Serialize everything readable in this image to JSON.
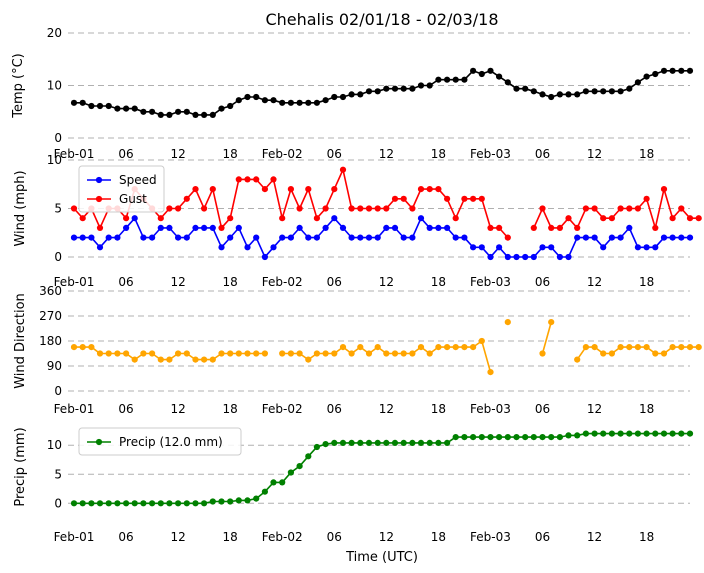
{
  "chart_data": {
    "type": "line",
    "title": "Chehalis 02/01/18 - 02/03/18",
    "xlabel": "Time (UTC)",
    "x_start": "2018-02-01T00:00",
    "x_step_hours": 1,
    "x_ticks": [
      "Feb-01",
      "06",
      "12",
      "18",
      "Feb-02",
      "06",
      "12",
      "18",
      "Feb-03",
      "06",
      "12",
      "18"
    ],
    "x_tick_hours": [
      0,
      6,
      12,
      18,
      24,
      30,
      36,
      42,
      48,
      54,
      60,
      66
    ],
    "panels": [
      {
        "ylabel": "Temp (°C)",
        "ylim": [
          0,
          20
        ],
        "yticks": [
          0,
          10,
          20
        ],
        "grid": true,
        "series": [
          {
            "color": "#000000",
            "values": [
              6.7,
              6.7,
              6.1,
              6.1,
              6.1,
              5.6,
              5.6,
              5.6,
              5.0,
              5.0,
              4.4,
              4.4,
              5.0,
              5.0,
              4.4,
              4.4,
              4.4,
              5.6,
              6.1,
              7.2,
              7.8,
              7.8,
              7.2,
              7.2,
              6.7,
              6.7,
              6.7,
              6.7,
              6.7,
              7.2,
              7.8,
              7.8,
              8.3,
              8.3,
              8.9,
              8.9,
              9.4,
              9.4,
              9.4,
              9.4,
              10.0,
              10.0,
              11.1,
              11.1,
              11.1,
              11.1,
              12.8,
              12.2,
              12.8,
              11.7,
              10.6,
              9.4,
              9.4,
              8.9,
              8.3,
              7.8,
              8.3,
              8.3,
              8.3,
              8.9,
              8.9,
              8.9,
              8.9,
              8.9,
              9.4,
              10.6,
              11.7,
              12.2,
              12.8,
              12.8,
              12.8,
              12.8
            ]
          }
        ]
      },
      {
        "ylabel": "Wind (mph)",
        "ylim": [
          0,
          10
        ],
        "yticks": [
          0,
          5,
          10
        ],
        "grid": true,
        "legend": "top-left",
        "series": [
          {
            "name": "Speed",
            "color": "#0000ff",
            "values": [
              2,
              2,
              2,
              1,
              2,
              2,
              3,
              4,
              2,
              2,
              3,
              3,
              2,
              2,
              3,
              3,
              3,
              1,
              2,
              3,
              1,
              2,
              0,
              1,
              2,
              2,
              3,
              2,
              2,
              3,
              4,
              3,
              2,
              2,
              2,
              2,
              3,
              3,
              2,
              2,
              4,
              3,
              3,
              3,
              2,
              2,
              1,
              1,
              0,
              1,
              0,
              0,
              0,
              0,
              1,
              1,
              0,
              0,
              2,
              2,
              2,
              1,
              2,
              2,
              3,
              1,
              1,
              1,
              2,
              2,
              2,
              2
            ]
          },
          {
            "name": "Gust",
            "color": "#ff0000",
            "values": [
              5,
              4,
              5,
              3,
              5,
              5,
              4,
              7,
              6,
              5,
              4,
              5,
              5,
              6,
              7,
              5,
              7,
              3,
              4,
              8,
              8,
              8,
              7,
              8,
              4,
              7,
              5,
              7,
              4,
              5,
              7,
              9,
              5,
              5,
              5,
              5,
              5,
              6,
              6,
              5,
              7,
              7,
              7,
              6,
              4,
              6,
              6,
              6,
              3,
              3,
              2,
              null,
              null,
              3,
              5,
              3,
              3,
              4,
              3,
              5,
              5,
              4,
              4,
              5,
              5,
              5,
              6,
              3,
              7,
              4,
              5,
              4,
              4
            ]
          }
        ]
      },
      {
        "ylabel": "Wind Direction",
        "ylim": [
          0,
          360
        ],
        "yticks": [
          0,
          90,
          180,
          270,
          360
        ],
        "grid": true,
        "series": [
          {
            "color": "#ffa500",
            "values": [
              158,
              158,
              158,
              135,
              135,
              135,
              135,
              113,
              135,
              135,
              113,
              113,
              135,
              135,
              113,
              113,
              113,
              135,
              135,
              135,
              135,
              135,
              135,
              null,
              135,
              135,
              135,
              113,
              135,
              135,
              135,
              158,
              135,
              158,
              135,
              158,
              135,
              135,
              135,
              135,
              158,
              135,
              158,
              158,
              158,
              158,
              158,
              180,
              68,
              null,
              248,
              null,
              null,
              null,
              135,
              248,
              null,
              null,
              113,
              158,
              158,
              135,
              135,
              158,
              158,
              158,
              158,
              135,
              135,
              158,
              158,
              158,
              158
            ]
          }
        ]
      },
      {
        "ylabel": "Precip (mm)",
        "ylim": [
          -1.5,
          14
        ],
        "yticks": [
          0,
          5,
          10
        ],
        "grid": true,
        "legend": "top-left",
        "series": [
          {
            "name": "Precip (12.0 mm)",
            "color": "#008000",
            "values": [
              0,
              0,
              0,
              0,
              0,
              0,
              0,
              0,
              0,
              0,
              0,
              0,
              0,
              0,
              0,
              0,
              0.3,
              0.3,
              0.3,
              0.5,
              0.5,
              0.8,
              2.0,
              3.6,
              3.6,
              5.3,
              6.4,
              8.1,
              9.7,
              10.2,
              10.4,
              10.4,
              10.4,
              10.4,
              10.4,
              10.4,
              10.4,
              10.4,
              10.4,
              10.4,
              10.4,
              10.4,
              10.4,
              10.4,
              11.4,
              11.4,
              11.4,
              11.4,
              11.4,
              11.4,
              11.4,
              11.4,
              11.4,
              11.4,
              11.4,
              11.4,
              11.4,
              11.7,
              11.7,
              12.0,
              12.0,
              12.0,
              12.0,
              12.0,
              12.0,
              12.0,
              12.0,
              12.0,
              12.0,
              12.0,
              12.0,
              12.0
            ]
          }
        ]
      }
    ]
  }
}
